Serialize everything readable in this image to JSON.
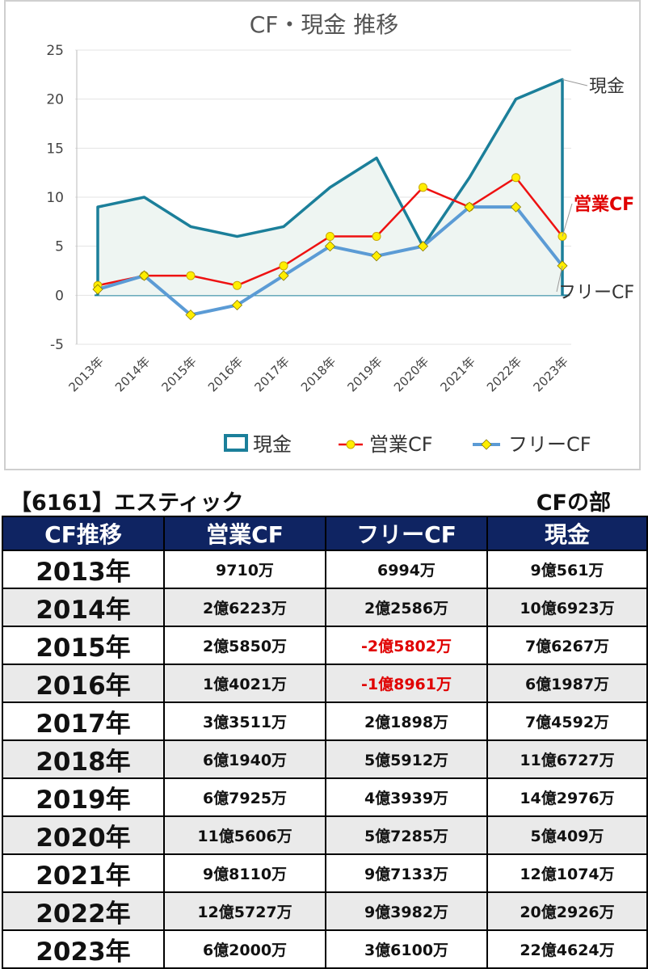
{
  "chart_data": {
    "type": "line",
    "title": "CF・現金 推移",
    "categories": [
      "2013年",
      "2014年",
      "2015年",
      "2016年",
      "2017年",
      "2018年",
      "2019年",
      "2020年",
      "2021年",
      "2022年",
      "2023年"
    ],
    "yticks": [
      "25",
      "20",
      "15",
      "10",
      "5",
      "0",
      "-5"
    ],
    "ylim": [
      -5,
      25
    ],
    "grid": true,
    "legend_position": "bottom",
    "series": [
      {
        "name": "現金",
        "color": "#1b7f9a",
        "fill": "#eef5f2",
        "end_label": "現金",
        "values": [
          9,
          10,
          7,
          6,
          7,
          11,
          14,
          5,
          12,
          20,
          22
        ]
      },
      {
        "name": "営業CF",
        "color": "#ee1111",
        "marker_color": "#ffee00",
        "end_label": "営業CF",
        "values": [
          1,
          2,
          2,
          1,
          3,
          6,
          6,
          11,
          9,
          12,
          6
        ]
      },
      {
        "name": "フリーCF",
        "color": "#5b9bd5",
        "marker_color": "#ffee00",
        "end_label": "フリーCF",
        "values": [
          0.6,
          2,
          -2,
          -1,
          2,
          5,
          4,
          5,
          9,
          9,
          3
        ]
      }
    ]
  },
  "table": {
    "title": "【6161】エスティック",
    "section": "CFの部",
    "headers": [
      "CF推移",
      "営業CF",
      "フリーCF",
      "現金"
    ],
    "rows": [
      {
        "year": "2013年",
        "op": "9710万",
        "free": "6994万",
        "cash": "9億561万",
        "free_negative": false
      },
      {
        "year": "2014年",
        "op": "2億6223万",
        "free": "2億2586万",
        "cash": "10億6923万",
        "free_negative": false
      },
      {
        "year": "2015年",
        "op": "2億5850万",
        "free": "-2億5802万",
        "cash": "7億6267万",
        "free_negative": true
      },
      {
        "year": "2016年",
        "op": "1億4021万",
        "free": "-1億8961万",
        "cash": "6億1987万",
        "free_negative": true
      },
      {
        "year": "2017年",
        "op": "3億3511万",
        "free": "2億1898万",
        "cash": "7億4592万",
        "free_negative": false
      },
      {
        "year": "2018年",
        "op": "6億1940万",
        "free": "5億5912万",
        "cash": "11億6727万",
        "free_negative": false
      },
      {
        "year": "2019年",
        "op": "6億7925万",
        "free": "4億3939万",
        "cash": "14億2976万",
        "free_negative": false
      },
      {
        "year": "2020年",
        "op": "11億5606万",
        "free": "5億7285万",
        "cash": "5億409万",
        "free_negative": false
      },
      {
        "year": "2021年",
        "op": "9億8110万",
        "free": "9億7133万",
        "cash": "12億1074万",
        "free_negative": false
      },
      {
        "year": "2022年",
        "op": "12億5727万",
        "free": "9億3982万",
        "cash": "20億2926万",
        "free_negative": false
      },
      {
        "year": "2023年",
        "op": "6億2000万",
        "free": "3億6100万",
        "cash": "22億4624万",
        "free_negative": false
      }
    ]
  }
}
